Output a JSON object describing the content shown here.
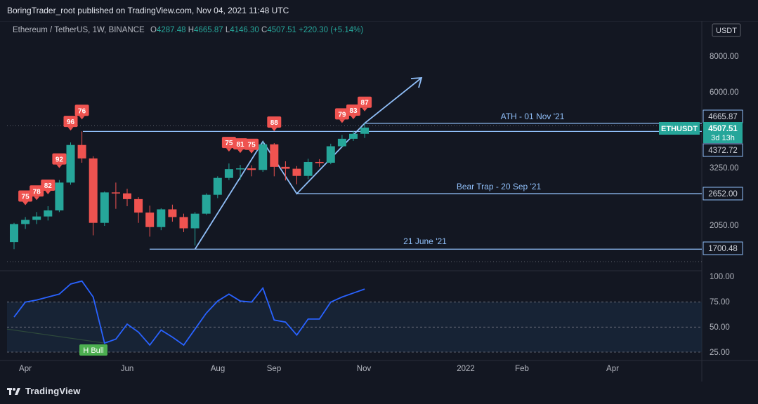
{
  "header": {
    "title": "BoringTrader_root published on TradingView.com, Nov 04, 2021 11:48 UTC"
  },
  "legend": {
    "symbol": "Ethereum / TetherUS, 1W, BINANCE",
    "o_label": "O",
    "o_value": "4287.48",
    "h_label": "H",
    "h_value": "4665.87",
    "l_label": "L",
    "l_value": "4146.30",
    "c_label": "C",
    "c_value": "4507.51",
    "change": "+220.30 (+5.14%)"
  },
  "price_axis": {
    "currency": "USDT",
    "ticks": [
      "8000.00",
      "6000.00",
      "3250.00",
      "2050.00"
    ],
    "badges": {
      "ath": "4665.87",
      "symbol": "ETHUSDT",
      "last": "4507.51",
      "countdown": "3d 13h",
      "low": "4372.72",
      "bear": "2652.00",
      "june": "1700.48"
    }
  },
  "annotations": {
    "ath": "ATH - 01 Nov '21",
    "bear": "Bear Trap - 20 Sep '21",
    "june": "21 June '21",
    "hbull": "H Bull"
  },
  "osc_axis": {
    "ticks": [
      "100.00",
      "75.00",
      "50.00",
      "25.00"
    ]
  },
  "time_axis": {
    "labels": [
      "Apr",
      "Jun",
      "Aug",
      "Sep",
      "Nov",
      "2022",
      "Feb",
      "Apr"
    ]
  },
  "footer": {
    "brand": "TradingView"
  },
  "colors": {
    "up": "#26a69a",
    "down": "#ef5350",
    "line": "#90bff9",
    "osc": "#2962ff",
    "bg": "#131722"
  },
  "chart_data": {
    "type": "candlestick",
    "symbol": "Ethereum / TetherUS, 1W, BINANCE",
    "candles": [
      {
        "o": 1800,
        "h": 2100,
        "l": 1700,
        "c": 2080
      },
      {
        "o": 2080,
        "h": 2200,
        "l": 2000,
        "c": 2150
      },
      {
        "o": 2150,
        "h": 2290,
        "l": 2080,
        "c": 2210
      },
      {
        "o": 2210,
        "h": 2400,
        "l": 2140,
        "c": 2320
      },
      {
        "o": 2320,
        "h": 2960,
        "l": 2290,
        "c": 2900
      },
      {
        "o": 2900,
        "h": 4000,
        "l": 2850,
        "c": 3920
      },
      {
        "o": 3920,
        "h": 4372,
        "l": 3400,
        "c": 3520
      },
      {
        "o": 3520,
        "h": 3580,
        "l": 1900,
        "c": 2100
      },
      {
        "o": 2100,
        "h": 2700,
        "l": 2050,
        "c": 2680
      },
      {
        "o": 2680,
        "h": 2900,
        "l": 2350,
        "c": 2660
      },
      {
        "o": 2660,
        "h": 2760,
        "l": 2400,
        "c": 2540
      },
      {
        "o": 2540,
        "h": 2580,
        "l": 2100,
        "c": 2280
      },
      {
        "o": 2280,
        "h": 2410,
        "l": 1880,
        "c": 2030
      },
      {
        "o": 2030,
        "h": 2360,
        "l": 1980,
        "c": 2340
      },
      {
        "o": 2340,
        "h": 2430,
        "l": 2120,
        "c": 2200
      },
      {
        "o": 2200,
        "h": 2260,
        "l": 1950,
        "c": 2010
      },
      {
        "o": 2010,
        "h": 2290,
        "l": 1750,
        "c": 2260
      },
      {
        "o": 2260,
        "h": 2660,
        "l": 2240,
        "c": 2630
      },
      {
        "o": 2630,
        "h": 3050,
        "l": 2560,
        "c": 3010
      },
      {
        "o": 3010,
        "h": 3380,
        "l": 2960,
        "c": 3230
      },
      {
        "o": 3230,
        "h": 3340,
        "l": 2970,
        "c": 3250
      },
      {
        "o": 3250,
        "h": 3330,
        "l": 3050,
        "c": 3210
      },
      {
        "o": 3210,
        "h": 4030,
        "l": 3160,
        "c": 3940
      },
      {
        "o": 3940,
        "h": 3980,
        "l": 3050,
        "c": 3290
      },
      {
        "o": 3290,
        "h": 3440,
        "l": 2950,
        "c": 3240
      },
      {
        "o": 3240,
        "h": 3310,
        "l": 2860,
        "c": 3060
      },
      {
        "o": 3060,
        "h": 3510,
        "l": 2980,
        "c": 3420
      },
      {
        "o": 3420,
        "h": 3500,
        "l": 3290,
        "c": 3400
      },
      {
        "o": 3400,
        "h": 3960,
        "l": 3360,
        "c": 3880
      },
      {
        "o": 3880,
        "h": 4250,
        "l": 3850,
        "c": 4120
      },
      {
        "o": 4120,
        "h": 4380,
        "l": 4050,
        "c": 4287
      },
      {
        "o": 4287.48,
        "h": 4665.87,
        "l": 4146.3,
        "c": 4507.51
      }
    ],
    "signals": [
      {
        "i": 1,
        "v": "75"
      },
      {
        "i": 2,
        "v": "78"
      },
      {
        "i": 3,
        "v": "82"
      },
      {
        "i": 4,
        "v": "92"
      },
      {
        "i": 5,
        "v": "96"
      },
      {
        "i": 6,
        "v": "76"
      },
      {
        "i": 19,
        "v": "75"
      },
      {
        "i": 20,
        "v": "81"
      },
      {
        "i": 21,
        "v": "75"
      },
      {
        "i": 23,
        "v": "88"
      },
      {
        "i": 29,
        "v": "79"
      },
      {
        "i": 30,
        "v": "83"
      },
      {
        "i": 31,
        "v": "87"
      }
    ],
    "oscillator": [
      60,
      75,
      77,
      80,
      83,
      93,
      96,
      80,
      34,
      38,
      53,
      45,
      32,
      47,
      40,
      32,
      48,
      64,
      76,
      83,
      76,
      75,
      89,
      57,
      55,
      42,
      58,
      58,
      75,
      80,
      84,
      88
    ],
    "osc_ylim": [
      10,
      110
    ],
    "osc_levels": [
      75,
      50,
      25
    ],
    "levels": [
      {
        "name": "ATH - 01 Nov '21",
        "value": 4665.87
      },
      {
        "name": "Bear Trap - 20 Sep '21",
        "value": 2652.0
      },
      {
        "name": "21 June '21",
        "value": 1700.48
      }
    ],
    "price_ticks": [
      8000,
      6000,
      3250,
      2050
    ],
    "scale": "log"
  }
}
